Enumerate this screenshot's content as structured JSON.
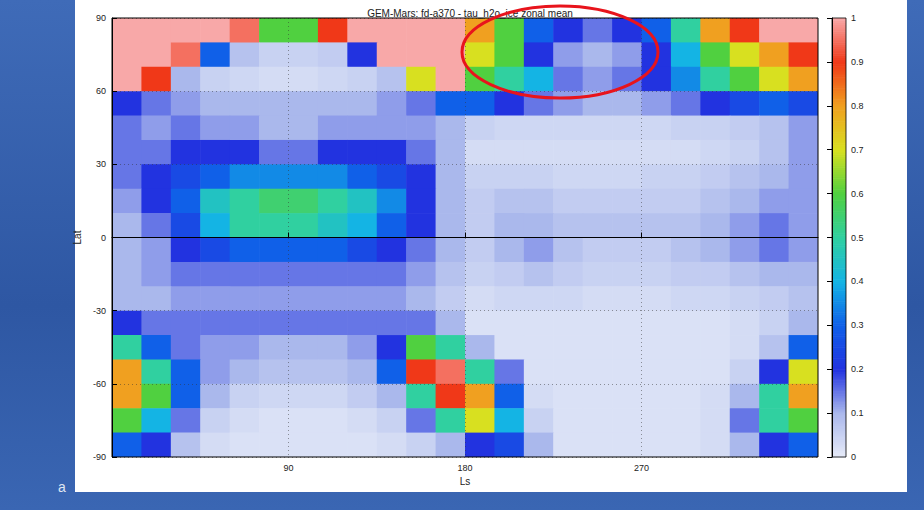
{
  "chart_data": {
    "type": "heatmap",
    "title": "GEM-Mars: fd-a370 - tau_h2o_ice zonal mean",
    "x_label": "Ls",
    "y_label": "Lat",
    "x": [
      7.5,
      22.5,
      37.5,
      52.5,
      67.5,
      82.5,
      97.5,
      112.5,
      127.5,
      142.5,
      157.5,
      172.5,
      187.5,
      202.5,
      217.5,
      232.5,
      247.5,
      262.5,
      277.5,
      292.5,
      307.5,
      322.5,
      337.5,
      352.5
    ],
    "y": [
      85,
      75,
      65,
      55,
      45,
      35,
      25,
      15,
      5,
      -5,
      -15,
      -25,
      -35,
      -45,
      -55,
      -65,
      -75,
      -85
    ],
    "values": [
      [
        1,
        1,
        1,
        1,
        0.95,
        0.6,
        0.6,
        0.9,
        1,
        1,
        1,
        1,
        0.8,
        0.6,
        0.3,
        0.2,
        0.15,
        0.2,
        0.3,
        0.5,
        0.8,
        0.9,
        1,
        1
      ],
      [
        1,
        1,
        0.95,
        0.3,
        0.08,
        0.05,
        0.05,
        0.06,
        0.2,
        1,
        1,
        1,
        0.7,
        0.6,
        0.2,
        0.12,
        0.1,
        0.12,
        0.2,
        0.4,
        0.6,
        0.7,
        0.8,
        0.9
      ],
      [
        1,
        0.9,
        0.1,
        0.05,
        0.04,
        0.03,
        0.03,
        0.04,
        0.05,
        0.08,
        0.7,
        1,
        0.6,
        0.5,
        0.4,
        0.15,
        0.12,
        0.15,
        0.2,
        0.35,
        0.5,
        0.6,
        0.7,
        0.8
      ],
      [
        0.2,
        0.15,
        0.12,
        0.1,
        0.1,
        0.1,
        0.1,
        0.1,
        0.1,
        0.12,
        0.15,
        0.3,
        0.3,
        0.2,
        0.15,
        0.12,
        0.1,
        0.1,
        0.12,
        0.15,
        0.2,
        0.25,
        0.3,
        0.25
      ],
      [
        0.15,
        0.12,
        0.15,
        0.12,
        0.12,
        0.1,
        0.1,
        0.12,
        0.12,
        0.12,
        0.12,
        0.1,
        0.05,
        0.04,
        0.04,
        0.04,
        0.04,
        0.04,
        0.04,
        0.05,
        0.05,
        0.06,
        0.08,
        0.12
      ],
      [
        0.15,
        0.15,
        0.2,
        0.2,
        0.2,
        0.15,
        0.15,
        0.2,
        0.2,
        0.2,
        0.15,
        0.1,
        0.03,
        0.03,
        0.03,
        0.03,
        0.03,
        0.03,
        0.03,
        0.03,
        0.04,
        0.05,
        0.08,
        0.12
      ],
      [
        0.15,
        0.2,
        0.25,
        0.3,
        0.35,
        0.35,
        0.35,
        0.35,
        0.3,
        0.25,
        0.2,
        0.1,
        0.05,
        0.05,
        0.05,
        0.04,
        0.04,
        0.04,
        0.05,
        0.05,
        0.06,
        0.08,
        0.1,
        0.12
      ],
      [
        0.12,
        0.2,
        0.3,
        0.45,
        0.5,
        0.55,
        0.55,
        0.5,
        0.45,
        0.35,
        0.2,
        0.1,
        0.06,
        0.08,
        0.08,
        0.06,
        0.06,
        0.06,
        0.06,
        0.06,
        0.08,
        0.1,
        0.12,
        0.12
      ],
      [
        0.1,
        0.15,
        0.25,
        0.4,
        0.5,
        0.5,
        0.5,
        0.45,
        0.4,
        0.3,
        0.2,
        0.1,
        0.06,
        0.1,
        0.1,
        0.08,
        0.08,
        0.08,
        0.08,
        0.08,
        0.1,
        0.12,
        0.15,
        0.12
      ],
      [
        0.1,
        0.12,
        0.2,
        0.25,
        0.3,
        0.3,
        0.3,
        0.3,
        0.25,
        0.2,
        0.15,
        0.1,
        0.06,
        0.1,
        0.12,
        0.08,
        0.06,
        0.06,
        0.06,
        0.08,
        0.1,
        0.12,
        0.15,
        0.12
      ],
      [
        0.1,
        0.12,
        0.15,
        0.15,
        0.15,
        0.15,
        0.15,
        0.15,
        0.15,
        0.15,
        0.12,
        0.08,
        0.05,
        0.06,
        0.08,
        0.06,
        0.05,
        0.05,
        0.05,
        0.06,
        0.06,
        0.08,
        0.1,
        0.1
      ],
      [
        0.1,
        0.1,
        0.12,
        0.12,
        0.12,
        0.12,
        0.12,
        0.12,
        0.12,
        0.12,
        0.1,
        0.06,
        0.03,
        0.04,
        0.04,
        0.04,
        0.03,
        0.03,
        0.03,
        0.04,
        0.04,
        0.05,
        0.06,
        0.08
      ],
      [
        0.2,
        0.15,
        0.15,
        0.15,
        0.15,
        0.15,
        0.15,
        0.15,
        0.15,
        0.15,
        0.15,
        0.1,
        0.02,
        0.02,
        0.02,
        0.02,
        0.02,
        0.02,
        0.02,
        0.02,
        0.02,
        0.03,
        0.05,
        0.1
      ],
      [
        0.5,
        0.3,
        0.15,
        0.12,
        0.12,
        0.1,
        0.1,
        0.1,
        0.12,
        0.2,
        0.6,
        0.5,
        0.1,
        0.02,
        0.02,
        0.02,
        0.02,
        0.02,
        0.02,
        0.02,
        0.02,
        0.03,
        0.08,
        0.3
      ],
      [
        0.8,
        0.5,
        0.3,
        0.12,
        0.1,
        0.08,
        0.08,
        0.08,
        0.1,
        0.3,
        0.9,
        0.95,
        0.5,
        0.15,
        0.02,
        0.02,
        0.02,
        0.02,
        0.02,
        0.02,
        0.02,
        0.05,
        0.2,
        0.7
      ],
      [
        0.8,
        0.6,
        0.3,
        0.1,
        0.05,
        0.04,
        0.04,
        0.04,
        0.06,
        0.1,
        0.5,
        0.9,
        0.8,
        0.3,
        0.03,
        0.02,
        0.02,
        0.02,
        0.02,
        0.02,
        0.03,
        0.1,
        0.5,
        0.8
      ],
      [
        0.6,
        0.4,
        0.15,
        0.05,
        0.03,
        0.02,
        0.02,
        0.02,
        0.03,
        0.05,
        0.15,
        0.5,
        0.7,
        0.4,
        0.05,
        0.02,
        0.02,
        0.02,
        0.02,
        0.02,
        0.03,
        0.15,
        0.5,
        0.6
      ],
      [
        0.3,
        0.2,
        0.08,
        0.03,
        0.02,
        0.02,
        0.02,
        0.02,
        0.02,
        0.03,
        0.05,
        0.1,
        0.2,
        0.25,
        0.1,
        0.02,
        0.02,
        0.02,
        0.02,
        0.02,
        0.03,
        0.1,
        0.2,
        0.3
      ]
    ],
    "xlim": [
      0,
      360
    ],
    "xticks": [
      90,
      180,
      270
    ],
    "ylim": [
      -90,
      90
    ],
    "yticks": [
      -90,
      -60,
      -30,
      0,
      30,
      60,
      90
    ],
    "grid": true,
    "colorbar": {
      "range": [
        0,
        1
      ],
      "ticks": [
        0,
        0.1,
        0.2,
        0.3,
        0.4,
        0.5,
        0.6,
        0.7,
        0.8,
        0.9,
        1
      ]
    },
    "annotations": [
      "a"
    ]
  }
}
